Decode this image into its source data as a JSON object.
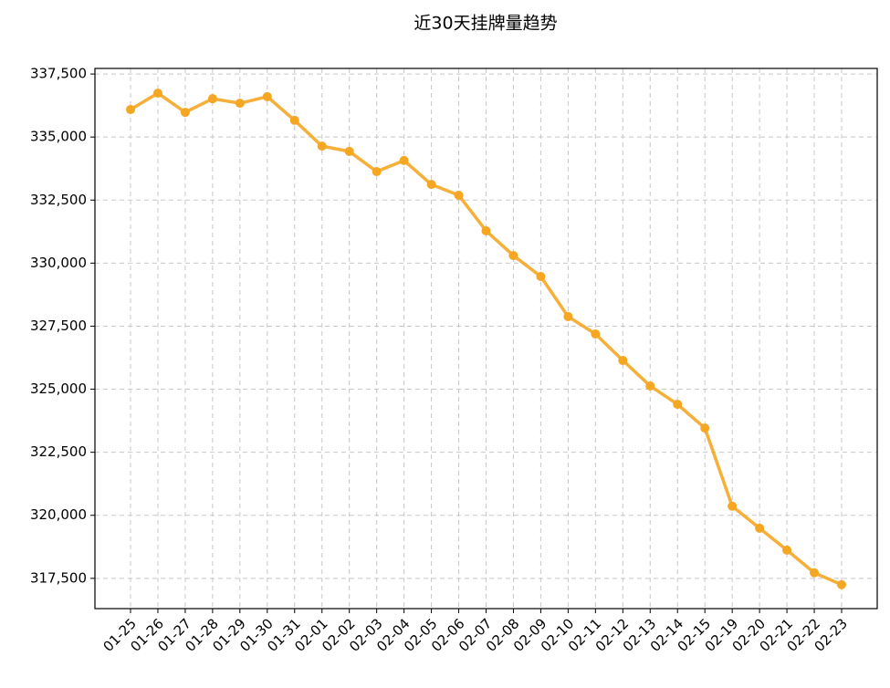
{
  "chart_data": {
    "type": "line",
    "title": "近30天挂牌量趋势",
    "categories": [
      "01-25",
      "01-26",
      "01-27",
      "01-28",
      "01-29",
      "01-30",
      "01-31",
      "02-01",
      "02-02",
      "02-03",
      "02-04",
      "02-05",
      "02-06",
      "02-07",
      "02-08",
      "02-09",
      "02-10",
      "02-11",
      "02-12",
      "02-13",
      "02-14",
      "02-15",
      "02-19",
      "02-20",
      "02-21",
      "02-22",
      "02-23"
    ],
    "series": [
      {
        "name": "挂牌量",
        "color": "#f5a623",
        "values": [
          336090,
          336740,
          335980,
          336520,
          336340,
          336600,
          335660,
          334640,
          334430,
          333630,
          334070,
          333120,
          332690,
          331280,
          330300,
          329470,
          327880,
          327190,
          326140,
          325130,
          324400,
          323460,
          320360,
          319490,
          318620,
          317720,
          317250
        ]
      }
    ],
    "ylim": [
      316300,
      337720
    ],
    "yticks": [
      {
        "value": 317500,
        "label": "317,500"
      },
      {
        "value": 320000,
        "label": "320,000"
      },
      {
        "value": 322500,
        "label": "322,500"
      },
      {
        "value": 325000,
        "label": "325,000"
      },
      {
        "value": 327500,
        "label": "327,500"
      },
      {
        "value": 330000,
        "label": "330,000"
      },
      {
        "value": 332500,
        "label": "332,500"
      },
      {
        "value": 335000,
        "label": "335,000"
      },
      {
        "value": 337500,
        "label": "337,500"
      }
    ],
    "grid": true
  }
}
